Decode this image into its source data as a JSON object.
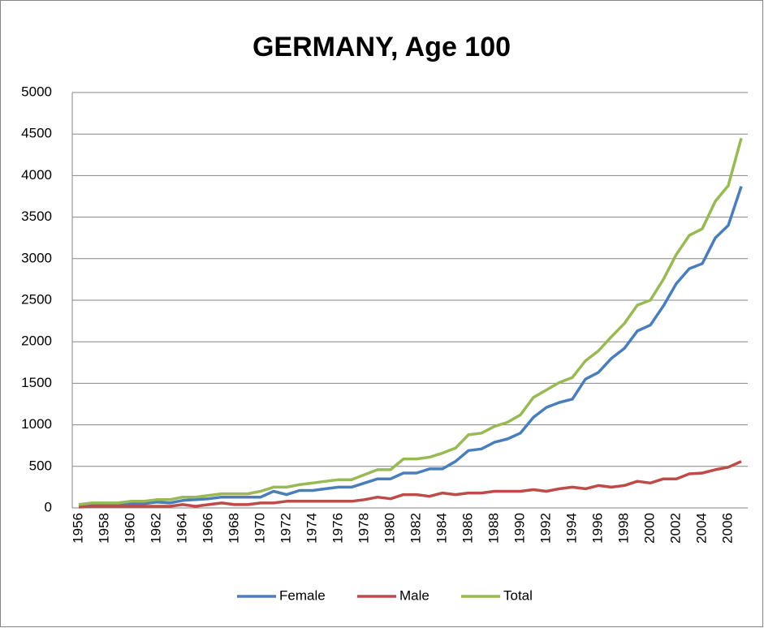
{
  "chart_data": {
    "type": "line",
    "title": "GERMANY, Age 100",
    "categories": [
      "1956",
      null,
      "1958",
      null,
      "1960",
      null,
      "1962",
      null,
      "1964",
      null,
      "1966",
      null,
      "1968",
      null,
      "1970",
      null,
      "1972",
      null,
      "1974",
      null,
      "1976",
      null,
      "1978",
      null,
      "1980",
      null,
      "1982",
      null,
      "1984",
      null,
      "1986",
      null,
      "1988",
      null,
      "1990",
      null,
      "1992",
      null,
      "1994",
      null,
      "1996",
      null,
      "1998",
      null,
      "2000",
      null,
      "2002",
      null,
      "2004",
      null,
      "2006",
      null
    ],
    "series": [
      {
        "name": "Female",
        "color": "#4a7ebb",
        "values": [
          30,
          40,
          40,
          40,
          50,
          50,
          70,
          60,
          90,
          100,
          110,
          130,
          130,
          130,
          130,
          200,
          160,
          210,
          210,
          230,
          250,
          250,
          300,
          350,
          350,
          420,
          420,
          470,
          470,
          560,
          690,
          710,
          790,
          830,
          900,
          1090,
          1210,
          1270,
          1310,
          1550,
          1630,
          1800,
          1920,
          2130,
          2200,
          2430,
          2700,
          2880,
          2940,
          3250,
          3400,
          3870
        ]
      },
      {
        "name": "Male",
        "color": "#be4b48",
        "values": [
          10,
          20,
          20,
          20,
          20,
          20,
          20,
          20,
          40,
          20,
          40,
          60,
          40,
          40,
          60,
          60,
          80,
          80,
          80,
          80,
          80,
          80,
          100,
          130,
          110,
          160,
          160,
          140,
          180,
          160,
          180,
          180,
          200,
          200,
          200,
          220,
          200,
          230,
          250,
          230,
          270,
          250,
          270,
          320,
          300,
          350,
          350,
          410,
          420,
          460,
          490,
          560
        ]
      },
      {
        "name": "Total",
        "color": "#98b954",
        "values": [
          40,
          60,
          60,
          60,
          80,
          80,
          100,
          100,
          130,
          130,
          150,
          170,
          170,
          170,
          200,
          250,
          250,
          280,
          300,
          320,
          340,
          340,
          400,
          460,
          460,
          590,
          590,
          610,
          660,
          720,
          880,
          900,
          980,
          1030,
          1120,
          1330,
          1420,
          1510,
          1570,
          1770,
          1890,
          2060,
          2220,
          2440,
          2500,
          2750,
          3050,
          3280,
          3360,
          3690,
          3880,
          4450
        ]
      }
    ],
    "ylim": [
      0,
      5000
    ],
    "yticks": [
      0,
      500,
      1000,
      1500,
      2000,
      2500,
      3000,
      3500,
      4000,
      4500,
      5000
    ],
    "grid": true,
    "legend": "bottom"
  }
}
